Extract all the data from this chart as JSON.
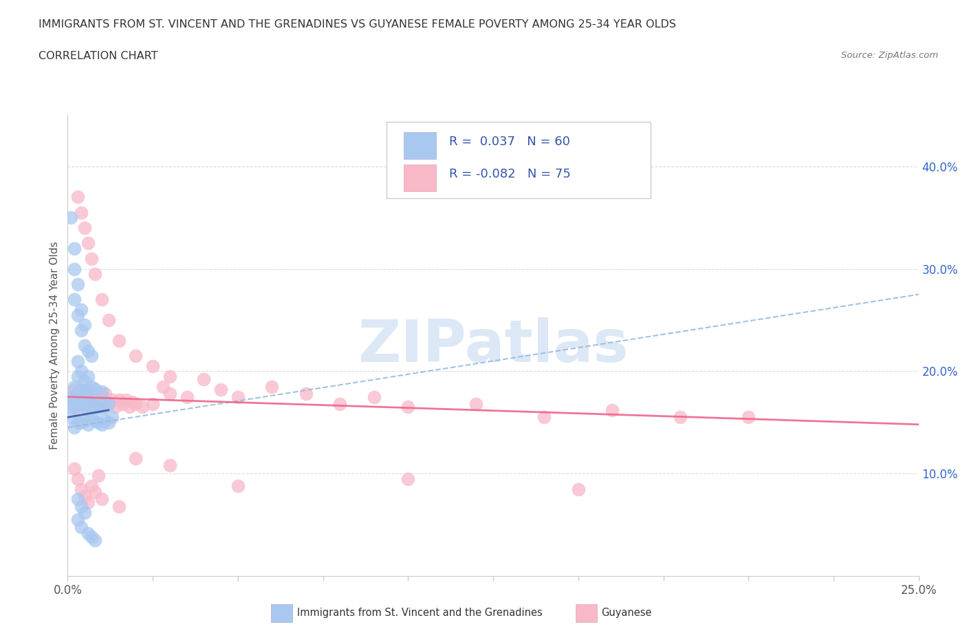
{
  "title": "IMMIGRANTS FROM ST. VINCENT AND THE GRENADINES VS GUYANESE FEMALE POVERTY AMONG 25-34 YEAR OLDS",
  "subtitle": "CORRELATION CHART",
  "source": "Source: ZipAtlas.com",
  "ylabel": "Female Poverty Among 25-34 Year Olds",
  "xlim": [
    0.0,
    0.25
  ],
  "ylim": [
    0.0,
    0.45
  ],
  "xticks": [
    0.0,
    0.025,
    0.05,
    0.075,
    0.1,
    0.125,
    0.15,
    0.175,
    0.2,
    0.225,
    0.25
  ],
  "xticklabels_show": {
    "0.0": "0.0%",
    "0.25": "25.0%"
  },
  "yticks_right": [
    0.1,
    0.2,
    0.3,
    0.4
  ],
  "ytick_right_labels": [
    "10.0%",
    "20.0%",
    "30.0%",
    "40.0%"
  ],
  "blue_color": "#A8C8F0",
  "blue_edge_color": "#6699CC",
  "pink_color": "#F8B8C8",
  "pink_edge_color": "#E07090",
  "blue_line_color": "#99BBDD",
  "pink_line_color": "#EE6688",
  "blue_solid_line_color": "#3355AA",
  "legend_text_color": "#3355AA",
  "legend_value_color": "#3355AA",
  "watermark_color": "#DCE8F5",
  "R_blue": 0.037,
  "N_blue": 60,
  "R_pink": -0.082,
  "N_pink": 75,
  "blue_trend_x0": 0.0,
  "blue_trend_y0": 0.145,
  "blue_trend_x1": 0.25,
  "blue_trend_y1": 0.275,
  "pink_trend_x0": 0.0,
  "pink_trend_y0": 0.175,
  "pink_trend_x1": 0.25,
  "pink_trend_y1": 0.148,
  "blue_scatter_x": [
    0.001,
    0.001,
    0.001,
    0.002,
    0.002,
    0.002,
    0.002,
    0.003,
    0.003,
    0.003,
    0.003,
    0.003,
    0.004,
    0.004,
    0.004,
    0.004,
    0.005,
    0.005,
    0.005,
    0.005,
    0.006,
    0.006,
    0.006,
    0.006,
    0.007,
    0.007,
    0.007,
    0.008,
    0.008,
    0.008,
    0.009,
    0.009,
    0.01,
    0.01,
    0.01,
    0.011,
    0.011,
    0.012,
    0.012,
    0.013,
    0.002,
    0.002,
    0.003,
    0.003,
    0.004,
    0.004,
    0.005,
    0.005,
    0.006,
    0.007,
    0.001,
    0.002,
    0.003,
    0.004,
    0.005,
    0.003,
    0.004,
    0.006,
    0.007,
    0.008
  ],
  "blue_scatter_y": [
    0.155,
    0.165,
    0.175,
    0.145,
    0.165,
    0.185,
    0.175,
    0.15,
    0.165,
    0.18,
    0.195,
    0.21,
    0.15,
    0.168,
    0.182,
    0.2,
    0.152,
    0.167,
    0.178,
    0.19,
    0.148,
    0.162,
    0.178,
    0.195,
    0.155,
    0.17,
    0.185,
    0.152,
    0.168,
    0.183,
    0.15,
    0.165,
    0.148,
    0.163,
    0.18,
    0.152,
    0.17,
    0.15,
    0.168,
    0.155,
    0.27,
    0.3,
    0.255,
    0.285,
    0.24,
    0.26,
    0.225,
    0.245,
    0.22,
    0.215,
    0.35,
    0.32,
    0.075,
    0.068,
    0.062,
    0.055,
    0.048,
    0.042,
    0.038,
    0.035
  ],
  "pink_scatter_x": [
    0.001,
    0.002,
    0.002,
    0.003,
    0.003,
    0.004,
    0.004,
    0.005,
    0.005,
    0.006,
    0.006,
    0.007,
    0.007,
    0.008,
    0.008,
    0.009,
    0.009,
    0.01,
    0.01,
    0.011,
    0.011,
    0.012,
    0.013,
    0.014,
    0.015,
    0.016,
    0.017,
    0.018,
    0.019,
    0.02,
    0.022,
    0.025,
    0.028,
    0.03,
    0.035,
    0.04,
    0.045,
    0.05,
    0.06,
    0.07,
    0.08,
    0.09,
    0.1,
    0.12,
    0.14,
    0.16,
    0.18,
    0.2,
    0.003,
    0.004,
    0.005,
    0.006,
    0.007,
    0.008,
    0.01,
    0.012,
    0.015,
    0.02,
    0.025,
    0.03,
    0.002,
    0.003,
    0.004,
    0.005,
    0.006,
    0.007,
    0.008,
    0.009,
    0.01,
    0.015,
    0.02,
    0.03,
    0.05,
    0.1,
    0.15
  ],
  "pink_scatter_y": [
    0.175,
    0.168,
    0.182,
    0.162,
    0.178,
    0.168,
    0.182,
    0.165,
    0.178,
    0.168,
    0.182,
    0.165,
    0.178,
    0.165,
    0.178,
    0.165,
    0.178,
    0.168,
    0.178,
    0.165,
    0.178,
    0.168,
    0.172,
    0.165,
    0.172,
    0.168,
    0.172,
    0.165,
    0.17,
    0.168,
    0.165,
    0.168,
    0.185,
    0.178,
    0.175,
    0.192,
    0.182,
    0.175,
    0.185,
    0.178,
    0.168,
    0.175,
    0.165,
    0.168,
    0.155,
    0.162,
    0.155,
    0.155,
    0.37,
    0.355,
    0.34,
    0.325,
    0.31,
    0.295,
    0.27,
    0.25,
    0.23,
    0.215,
    0.205,
    0.195,
    0.105,
    0.095,
    0.085,
    0.078,
    0.072,
    0.088,
    0.082,
    0.098,
    0.075,
    0.068,
    0.115,
    0.108,
    0.088,
    0.095,
    0.085
  ]
}
